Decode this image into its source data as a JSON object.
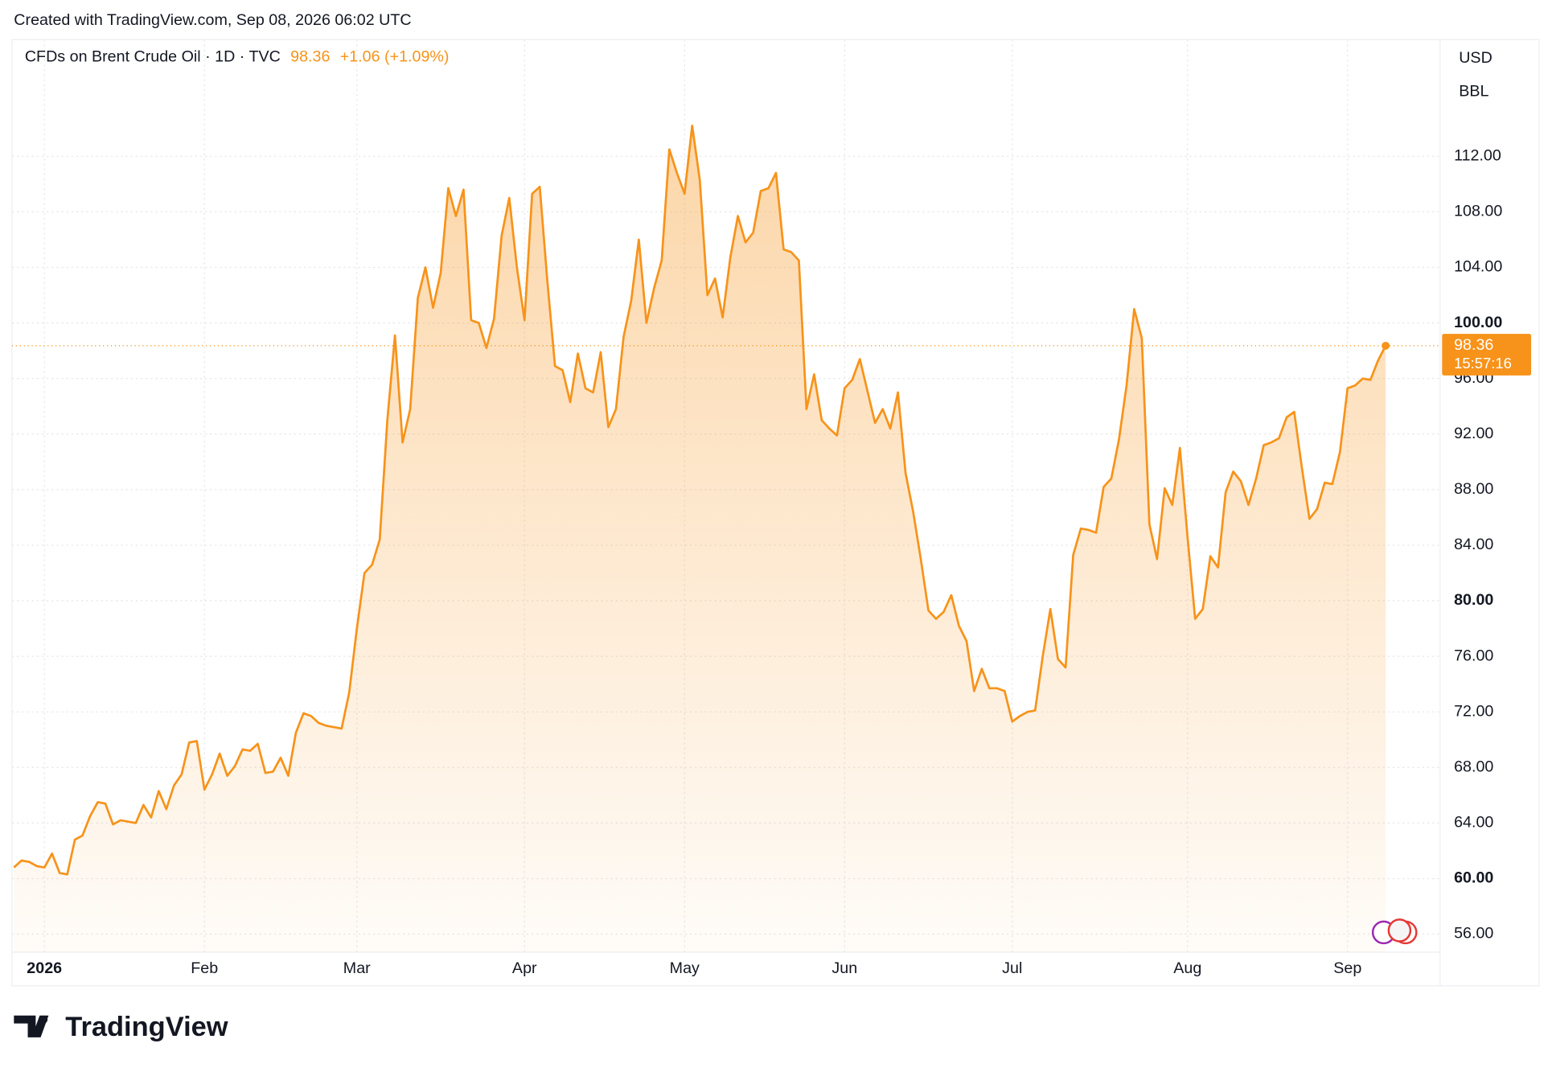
{
  "header": {
    "created": "Created with TradingView.com, Sep 08, 2026 06:02 UTC",
    "symbol": "CFDs on Brent Crude Oil · 1D · TVC",
    "price": "98.36",
    "change": "+1.06 (+1.09%)",
    "countdown": "15:57:16",
    "logo": "TradingView"
  },
  "chart_data": {
    "type": "area",
    "currency": "USD",
    "unit": "BBL",
    "color": "#f7931a",
    "grid": true,
    "categories": [
      null,
      null,
      null,
      null,
      "2026",
      null,
      null,
      null,
      null,
      null,
      null,
      null,
      null,
      null,
      null,
      null,
      null,
      null,
      null,
      null,
      null,
      null,
      null,
      null,
      null,
      "Feb",
      null,
      null,
      null,
      null,
      null,
      null,
      null,
      null,
      null,
      null,
      null,
      null,
      null,
      null,
      null,
      null,
      null,
      null,
      null,
      "Mar",
      null,
      null,
      null,
      null,
      null,
      null,
      null,
      null,
      null,
      null,
      null,
      null,
      null,
      null,
      null,
      null,
      null,
      null,
      null,
      null,
      null,
      "Apr",
      null,
      null,
      null,
      null,
      null,
      null,
      null,
      null,
      null,
      null,
      null,
      null,
      null,
      null,
      null,
      null,
      null,
      null,
      null,
      null,
      "May",
      null,
      null,
      null,
      null,
      null,
      null,
      null,
      null,
      null,
      null,
      null,
      null,
      null,
      null,
      null,
      null,
      null,
      null,
      null,
      null,
      "Jun",
      null,
      null,
      null,
      null,
      null,
      null,
      null,
      null,
      null,
      null,
      null,
      null,
      null,
      null,
      null,
      null,
      null,
      null,
      null,
      null,
      null,
      "Jul",
      null,
      null,
      null,
      null,
      null,
      null,
      null,
      null,
      null,
      null,
      null,
      null,
      null,
      null,
      null,
      null,
      null,
      null,
      null,
      null,
      null,
      null,
      "Aug",
      null,
      null,
      null,
      null,
      null,
      null,
      null,
      null,
      null,
      null,
      null,
      null,
      null,
      null,
      null,
      null,
      null,
      null,
      null,
      null,
      "Sep",
      null,
      null,
      null,
      null,
      null
    ],
    "values": [
      60.8,
      61.3,
      61.2,
      60.9,
      60.8,
      61.8,
      60.4,
      60.3,
      62.8,
      63.1,
      64.5,
      65.5,
      65.4,
      63.9,
      64.2,
      64.1,
      64.0,
      65.3,
      64.4,
      66.3,
      65.0,
      66.7,
      67.5,
      69.8,
      69.9,
      66.4,
      67.5,
      69.0,
      67.4,
      68.1,
      69.3,
      69.2,
      69.7,
      67.6,
      67.7,
      68.7,
      67.4,
      70.5,
      71.9,
      71.7,
      71.2,
      71.0,
      70.9,
      70.8,
      73.4,
      78.0,
      82.0,
      82.6,
      84.4,
      93.0,
      99.1,
      91.4,
      93.8,
      101.8,
      104.0,
      101.1,
      103.6,
      109.7,
      107.7,
      109.6,
      100.2,
      100.0,
      98.2,
      100.3,
      106.3,
      109.0,
      104.0,
      100.2,
      109.3,
      109.8,
      103.0,
      96.9,
      96.6,
      94.3,
      97.8,
      95.3,
      95.0,
      97.9,
      92.5,
      93.8,
      99.0,
      101.6,
      106.0,
      100.0,
      102.5,
      104.5,
      112.5,
      110.8,
      109.3,
      114.2,
      110.3,
      102.0,
      103.2,
      100.4,
      104.7,
      107.7,
      105.8,
      106.5,
      109.5,
      109.7,
      110.8,
      105.3,
      105.1,
      104.5,
      93.8,
      96.3,
      93.0,
      92.4,
      91.9,
      95.3,
      95.9,
      97.4,
      95.1,
      92.8,
      93.8,
      92.4,
      95.0,
      89.2,
      86.4,
      83.0,
      79.3,
      78.7,
      79.2,
      80.4,
      78.2,
      77.1,
      73.5,
      75.1,
      73.7,
      73.7,
      73.5,
      71.3,
      71.7,
      72.0,
      72.1,
      76.0,
      79.4,
      75.8,
      75.2,
      83.3,
      85.2,
      85.1,
      84.9,
      88.2,
      88.8,
      91.6,
      95.5,
      101.0,
      98.9,
      85.5,
      83.0,
      88.1,
      86.9,
      91.0,
      84.6,
      78.7,
      79.4,
      83.2,
      82.4,
      87.8,
      89.3,
      88.6,
      86.9,
      88.8,
      91.2,
      91.4,
      91.7,
      93.2,
      93.6,
      89.6,
      85.9,
      86.6,
      88.5,
      88.4,
      90.7,
      95.3,
      95.5,
      96.0,
      95.9,
      97.3,
      98.36
    ],
    "ylim": [
      54.7,
      120.4
    ],
    "yticks": [
      {
        "value": 56,
        "label": "56.00"
      },
      {
        "value": 60,
        "label": "60.00",
        "bold": true
      },
      {
        "value": 64,
        "label": "64.00"
      },
      {
        "value": 68,
        "label": "68.00"
      },
      {
        "value": 72,
        "label": "72.00"
      },
      {
        "value": 76,
        "label": "76.00"
      },
      {
        "value": 80,
        "label": "80.00",
        "bold": true
      },
      {
        "value": 84,
        "label": "84.00"
      },
      {
        "value": 88,
        "label": "88.00"
      },
      {
        "value": 92,
        "label": "92.00"
      },
      {
        "value": 96,
        "label": "96.00"
      },
      {
        "value": 100,
        "label": "100.00",
        "bold": true
      },
      {
        "value": 104,
        "label": "104.00"
      },
      {
        "value": 108,
        "label": "108.00"
      },
      {
        "value": 112,
        "label": "112.00"
      }
    ]
  }
}
